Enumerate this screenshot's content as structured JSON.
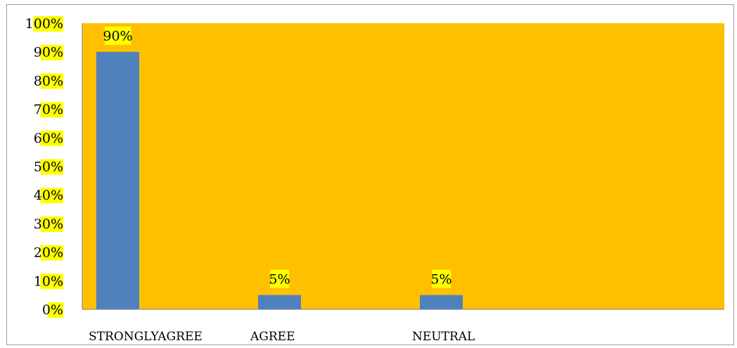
{
  "chart_data": {
    "type": "bar",
    "categories": [
      "STRONGLYAGREE",
      "AGREE",
      "NEUTRAL"
    ],
    "values": [
      90,
      5,
      5
    ],
    "data_labels": [
      "90%",
      "5%",
      "5%"
    ],
    "title": "",
    "xlabel": "",
    "ylabel": "",
    "ylim": [
      0,
      100
    ],
    "y_ticks": [
      0,
      10,
      20,
      30,
      40,
      50,
      60,
      70,
      80,
      90,
      100
    ],
    "y_tick_labels": [
      "0%",
      "10%",
      "20%",
      "30%",
      "40%",
      "50%",
      "60%",
      "70%",
      "80%",
      "90%",
      "100%"
    ],
    "grid": false,
    "legend": "none",
    "colors": {
      "plot_background": "#ffc000",
      "bar": "#4f81bd",
      "label_highlight": "#ffff00",
      "axis": "#808080"
    }
  }
}
